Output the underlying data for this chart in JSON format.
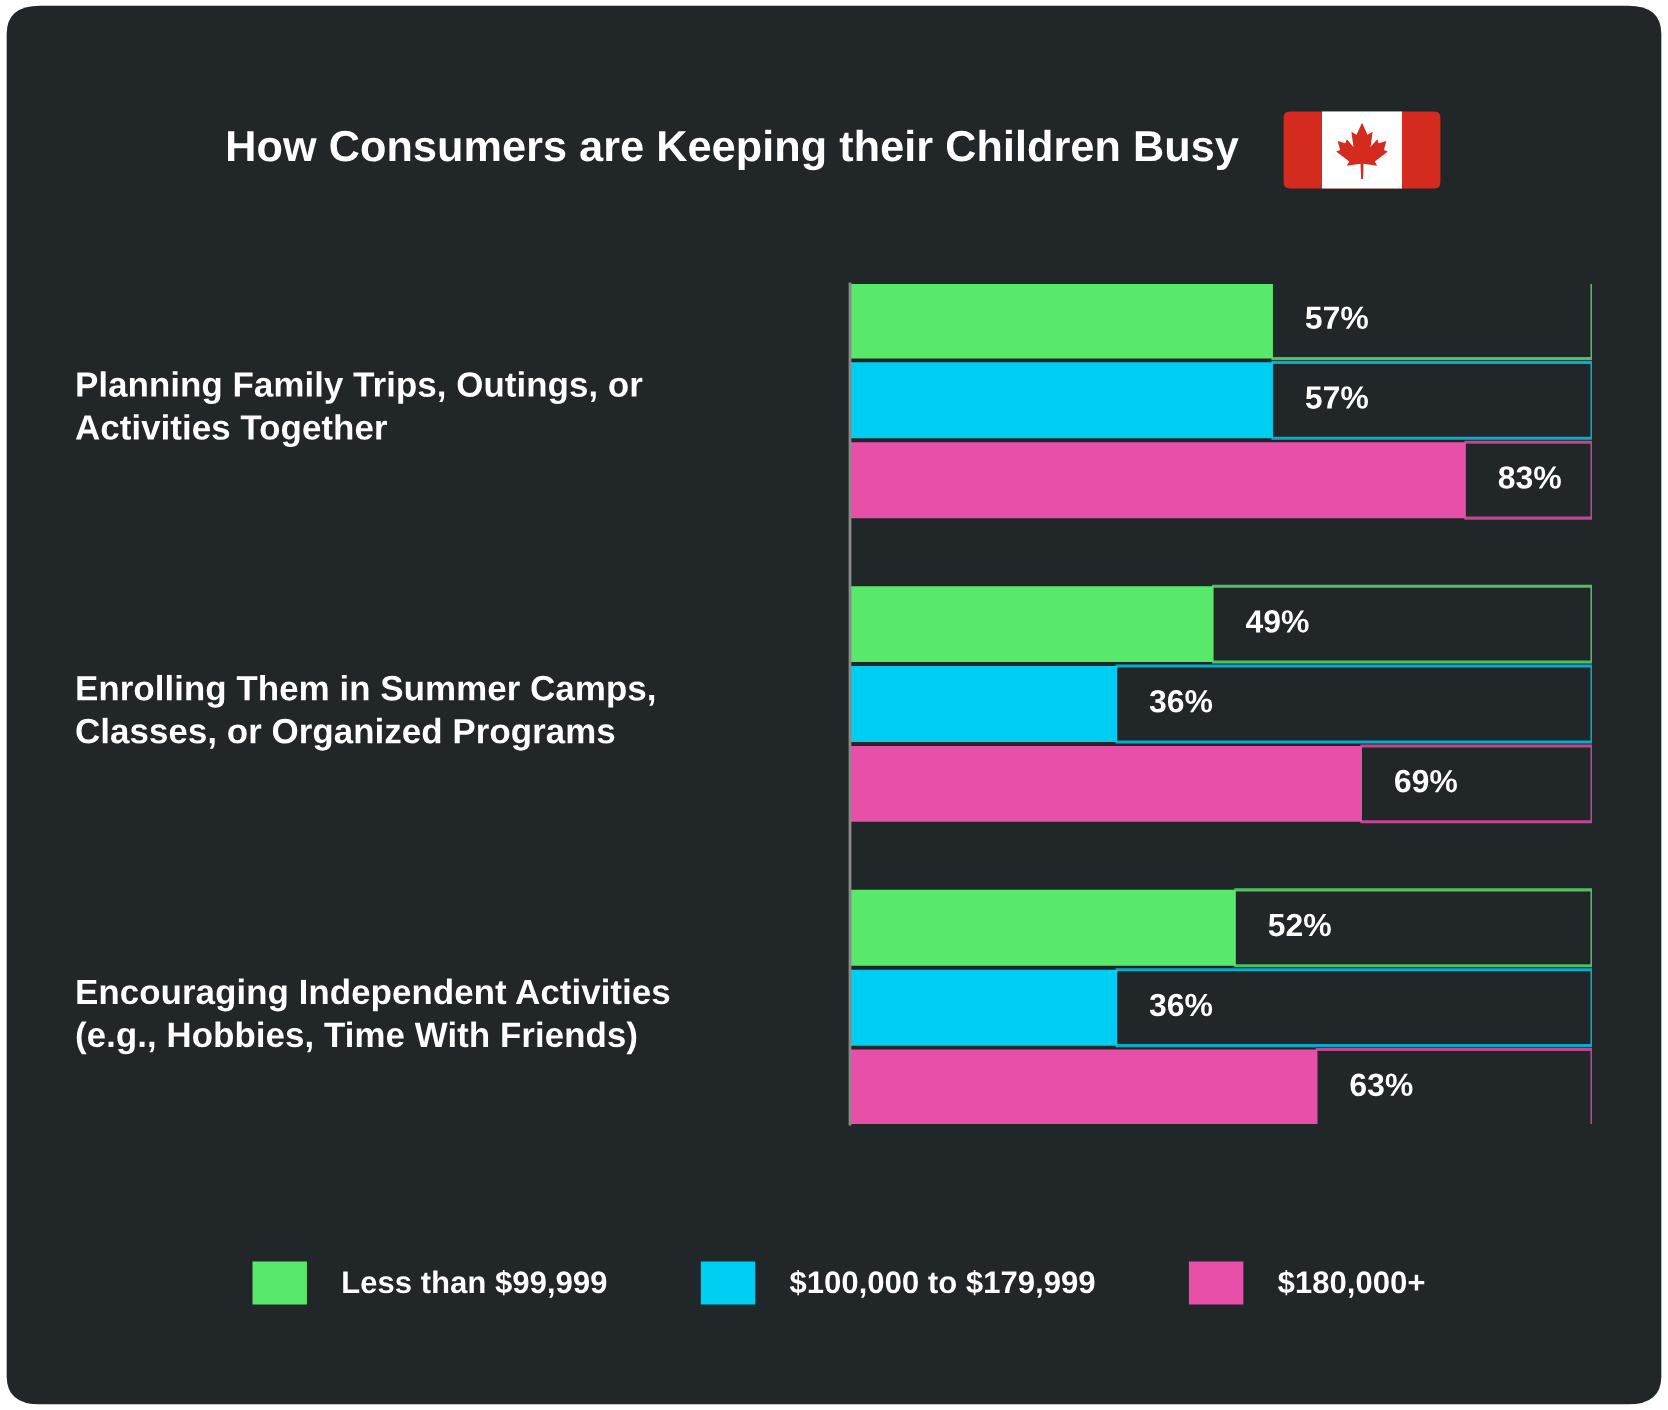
{
  "chart_data": {
    "type": "bar",
    "orientation": "horizontal",
    "title": "How Consumers are Keeping their Children Busy",
    "categories": [
      "Planning Family Trips, Outings, or\nActivities Together",
      "Enrolling Them in Summer Camps,\nClasses, or Organized Programs",
      "Encouraging Independent Activities\n(e.g., Hobbies, Time With Friends)"
    ],
    "series": [
      {
        "name": "Less than $99,999",
        "color": "#58e86a",
        "values": [
          57,
          49,
          52
        ],
        "value_labels": [
          "57%",
          "49%",
          "52%"
        ]
      },
      {
        "name": "$100,000 to $179,999",
        "color": "#00cdf2",
        "values": [
          57,
          36,
          36
        ],
        "value_labels": [
          "57%",
          "36%",
          "36%"
        ]
      },
      {
        "name": "$180,000+",
        "color": "#e84fa8",
        "values": [
          83,
          69,
          63
        ],
        "value_labels": [
          "83%",
          "69%",
          "63%"
        ]
      }
    ],
    "xlim": [
      0,
      100
    ],
    "tick_labels": "y",
    "grid": false,
    "legend": "bottom"
  }
}
